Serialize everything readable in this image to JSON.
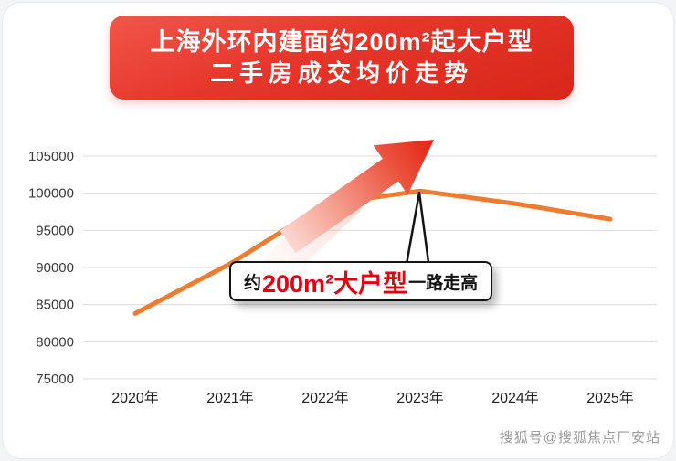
{
  "header": {
    "title_line1": "上海外环内建面约200m²起大户型",
    "title_line2": "二手房成交均价走势",
    "banner_color": "#e6352a"
  },
  "annotation": {
    "prefix": "约",
    "highlight": "200m²大户型",
    "suffix": "一路走高",
    "highlight_color": "#e60012"
  },
  "watermark": "搜狐号@搜狐焦点厂安站",
  "icons": {
    "trend_arrow": "up-right-arrow"
  },
  "chart_data": {
    "type": "line",
    "categories": [
      "2020年",
      "2021年",
      "2022年",
      "2023年",
      "2024年",
      "2025年"
    ],
    "series": [
      {
        "name": "二手房成交均价",
        "values": [
          83800,
          90500,
          98500,
          100300,
          98600,
          96500
        ]
      }
    ],
    "title": "上海外环内建面约200m²起大户型二手房成交均价走势",
    "xlabel": "",
    "ylabel": "",
    "ylim": [
      75000,
      105000
    ],
    "ytick_step": 5000,
    "grid": true,
    "legend_position": "none",
    "line_color": "#ed7c31"
  }
}
